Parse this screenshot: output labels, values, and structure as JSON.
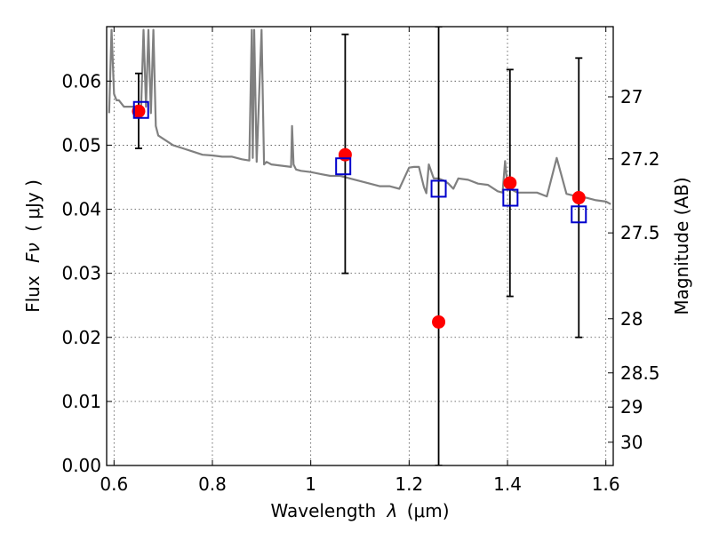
{
  "chart_data": {
    "type": "scatter",
    "xlabel": "Wavelength",
    "xlabel_symbol": "λ",
    "xlabel_unit": "(μm)",
    "ylabel": "Flux",
    "ylabel_symbol": "Fν",
    "ylabel_unit": "( μJy )",
    "y2label": "Magnitude (AB)",
    "xlim": [
      0.585,
      1.615
    ],
    "ylim": [
      0.0,
      0.0685
    ],
    "grid": true,
    "x_ticks": [
      0.6,
      0.8,
      1.0,
      1.2,
      1.4,
      1.6
    ],
    "x_tick_labels": [
      "0.6",
      "0.8",
      "1",
      "1.2",
      "1.4",
      "1.6"
    ],
    "y_ticks": [
      0.0,
      0.01,
      0.02,
      0.03,
      0.04,
      0.05,
      0.06
    ],
    "y_tick_labels": [
      "0.00",
      "0.01",
      "0.02",
      "0.03",
      "0.04",
      "0.05",
      "0.06"
    ],
    "mag_ticks": [
      27,
      27.2,
      27.5,
      28,
      28.5,
      29,
      30
    ],
    "mag_tick_labels": [
      "27",
      "27.2",
      "27.5",
      "28",
      "28.5",
      "29",
      "30"
    ],
    "colors": {
      "sed": "#808080",
      "observed": "#ff0000",
      "model": "#0000cc",
      "errorbar": "#000000"
    },
    "observed": {
      "x": [
        0.65,
        1.07,
        1.26,
        1.405,
        1.545
      ],
      "y": [
        0.0553,
        0.0485,
        0.0224,
        0.0441,
        0.0418
      ],
      "yerr_low": [
        0.0495,
        0.03,
        0.0,
        0.0264,
        0.02
      ],
      "yerr_high": [
        0.0612,
        0.0673,
        0.0685,
        0.0618,
        0.0636
      ]
    },
    "model_points": {
      "x": [
        0.655,
        1.066,
        1.26,
        1.406,
        1.545
      ],
      "y": [
        0.0555,
        0.0467,
        0.0432,
        0.0418,
        0.0392
      ]
    },
    "sed": {
      "x": [
        0.59,
        0.595,
        0.6,
        0.605,
        0.61,
        0.62,
        0.63,
        0.64,
        0.65,
        0.655,
        0.66,
        0.665,
        0.67,
        0.675,
        0.68,
        0.685,
        0.69,
        0.7,
        0.72,
        0.74,
        0.76,
        0.78,
        0.8,
        0.82,
        0.84,
        0.86,
        0.875,
        0.88,
        0.882,
        0.885,
        0.89,
        0.9,
        0.905,
        0.91,
        0.92,
        0.94,
        0.96,
        0.962,
        0.965,
        0.97,
        0.98,
        1.0,
        1.02,
        1.04,
        1.06,
        1.08,
        1.1,
        1.12,
        1.14,
        1.16,
        1.18,
        1.2,
        1.21,
        1.22,
        1.23,
        1.235,
        1.24,
        1.25,
        1.26,
        1.27,
        1.28,
        1.29,
        1.3,
        1.32,
        1.34,
        1.36,
        1.38,
        1.39,
        1.395,
        1.4,
        1.405,
        1.41,
        1.42,
        1.44,
        1.46,
        1.48,
        1.5,
        1.52,
        1.54,
        1.56,
        1.58,
        1.6,
        1.61
      ],
      "y": [
        0.055,
        0.068,
        0.058,
        0.057,
        0.057,
        0.056,
        0.056,
        0.056,
        0.0555,
        0.0555,
        0.068,
        0.056,
        0.068,
        0.055,
        0.068,
        0.053,
        0.0515,
        0.051,
        0.05,
        0.0495,
        0.049,
        0.0485,
        0.0484,
        0.0482,
        0.0482,
        0.0478,
        0.0476,
        0.068,
        0.048,
        0.068,
        0.0474,
        0.068,
        0.047,
        0.0474,
        0.047,
        0.0468,
        0.0466,
        0.053,
        0.047,
        0.0462,
        0.046,
        0.0458,
        0.0455,
        0.0452,
        0.0452,
        0.0448,
        0.0444,
        0.044,
        0.0436,
        0.0436,
        0.0432,
        0.0465,
        0.0466,
        0.0466,
        0.0435,
        0.0425,
        0.047,
        0.0448,
        0.0448,
        0.0445,
        0.044,
        0.0432,
        0.0448,
        0.0446,
        0.044,
        0.0438,
        0.0428,
        0.0426,
        0.0475,
        0.0434,
        0.0432,
        0.043,
        0.0426,
        0.0426,
        0.0426,
        0.042,
        0.048,
        0.0424,
        0.042,
        0.0418,
        0.0414,
        0.0412,
        0.0408
      ]
    }
  }
}
